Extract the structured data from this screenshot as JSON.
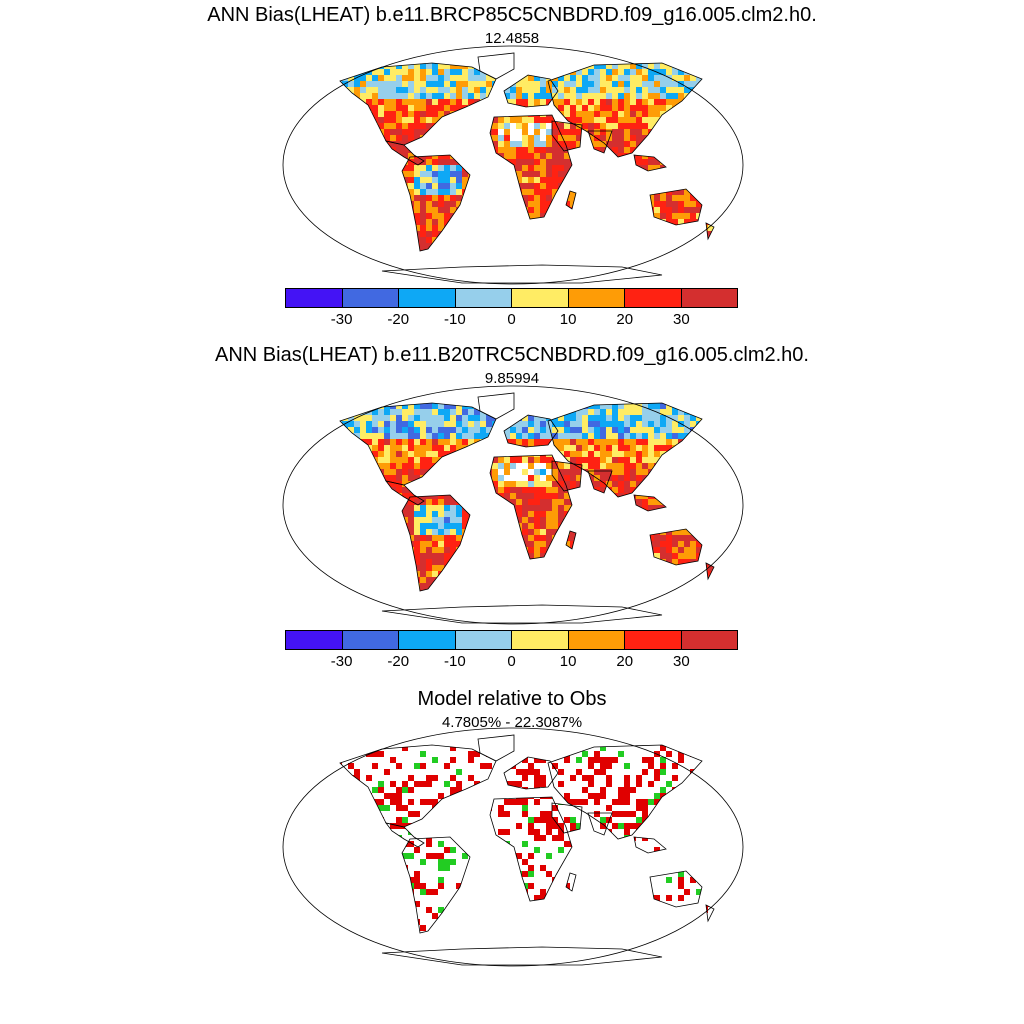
{
  "panels": [
    {
      "title": "ANN Bias(LHEAT) b.e11.BRCP85C5CNBDRD.f09_g16.005.clm2.h0.",
      "subtitle": "12.4858"
    },
    {
      "title": "ANN Bias(LHEAT) b.e11.B20TRC5CNBDRD.f09_g16.005.clm2.h0.",
      "subtitle": "9.85994"
    },
    {
      "title": "Model relative to Obs",
      "subtitle": "4.7805% - 22.3087%"
    }
  ],
  "colorbar": {
    "colors": [
      "#4413f5",
      "#4169e1",
      "#0ea8f5",
      "#96cfeb",
      "#ffec64",
      "#fe9c06",
      "#ff2212",
      "#d42f2f"
    ],
    "labels": [
      "-30",
      "-20",
      "-10",
      "0",
      "10",
      "20",
      "30"
    ]
  },
  "colors": {
    "outline": "#000000",
    "relative_red": "#e00000",
    "relative_green": "#22cc22"
  }
}
